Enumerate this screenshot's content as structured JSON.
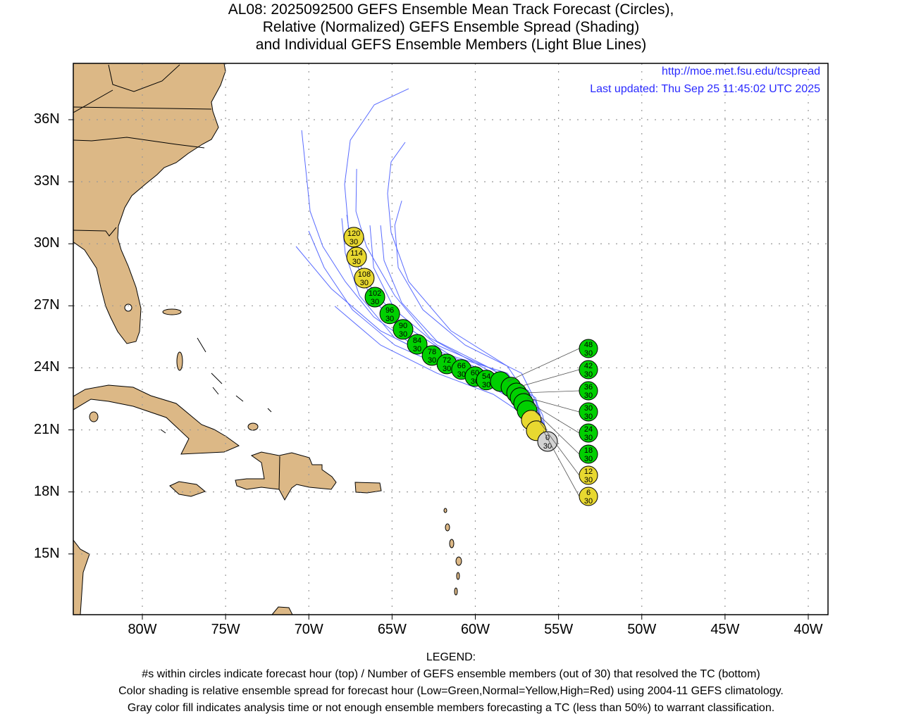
{
  "title": {
    "line1": "AL08: 2025092500 GEFS Ensemble Mean Track Forecast (Circles),",
    "line2": "Relative (Normalized) GEFS Ensemble Spread (Shading)",
    "line3": "and Individual GEFS Ensemble Members (Light Blue Lines)"
  },
  "info": {
    "url": "http://moe.met.fsu.edu/tcspread",
    "updated": "Last updated: Thu Sep 25 11:45:02 UTC 2025"
  },
  "legend": {
    "heading": "LEGEND:",
    "line1": "#s within circles indicate forecast hour (top) / Number of GEFS ensemble members (out of 30) that resolved the TC (bottom)",
    "line2": "Color shading is relative ensemble spread for forecast hour (Low=Green,Normal=Yellow,High=Red) using 2004-11 GEFS climatology.",
    "line3": "Gray color fill indicates analysis time or not enough ensemble members forecasting a TC (less than 50%) to warrant classification."
  },
  "colors": {
    "low": "#00d000",
    "normal": "#e8d830",
    "analysis": "#d3d3d3",
    "land": "#dcb886",
    "member": "#5a6cff"
  },
  "chart_data": {
    "type": "map-track",
    "x_ticks": [
      "80W",
      "75W",
      "70W",
      "65W",
      "60W",
      "55W",
      "50W",
      "45W",
      "40W"
    ],
    "x_tick_values": [
      -80,
      -75,
      -70,
      -65,
      -60,
      -55,
      -50,
      -45,
      -40
    ],
    "y_ticks": [
      "36N",
      "33N",
      "30N",
      "27N",
      "24N",
      "21N",
      "18N",
      "15N"
    ],
    "y_tick_values": [
      36,
      33,
      30,
      27,
      24,
      21,
      18,
      15
    ],
    "lon_range": [
      -84.2,
      -38.8
    ],
    "lat_range": [
      12.1,
      38.7
    ],
    "mean_track": [
      {
        "hour": 0,
        "members": 30,
        "lon": -55.66,
        "lat": 20.44,
        "spread": "analysis"
      },
      {
        "hour": 6,
        "members": 30,
        "lon": -56.34,
        "lat": 20.96,
        "spread": "normal"
      },
      {
        "hour": 12,
        "members": 30,
        "lon": -56.64,
        "lat": 21.47,
        "spread": "normal"
      },
      {
        "hour": 18,
        "members": 30,
        "lon": -56.89,
        "lat": 21.94,
        "spread": "low"
      },
      {
        "hour": 24,
        "members": 30,
        "lon": -57.1,
        "lat": 22.28,
        "spread": "low"
      },
      {
        "hour": 30,
        "members": 30,
        "lon": -57.31,
        "lat": 22.56,
        "spread": "low"
      },
      {
        "hour": 36,
        "members": 30,
        "lon": -57.52,
        "lat": 22.79,
        "spread": "low"
      },
      {
        "hour": 42,
        "members": 30,
        "lon": -57.86,
        "lat": 23.07,
        "spread": "low"
      },
      {
        "hour": 48,
        "members": 30,
        "lon": -58.5,
        "lat": 23.34,
        "spread": "low"
      },
      {
        "hour": 54,
        "members": 30,
        "lon": -59.34,
        "lat": 23.41,
        "spread": "low"
      },
      {
        "hour": 60,
        "members": 30,
        "lon": -60.02,
        "lat": 23.58,
        "spread": "low"
      },
      {
        "hour": 66,
        "members": 30,
        "lon": -60.83,
        "lat": 23.92,
        "spread": "low"
      },
      {
        "hour": 72,
        "members": 30,
        "lon": -61.71,
        "lat": 24.19,
        "spread": "low"
      },
      {
        "hour": 78,
        "members": 30,
        "lon": -62.6,
        "lat": 24.6,
        "spread": "low"
      },
      {
        "hour": 84,
        "members": 30,
        "lon": -63.49,
        "lat": 25.14,
        "spread": "low"
      },
      {
        "hour": 90,
        "members": 30,
        "lon": -64.34,
        "lat": 25.86,
        "spread": "low"
      },
      {
        "hour": 96,
        "members": 30,
        "lon": -65.14,
        "lat": 26.61,
        "spread": "low"
      },
      {
        "hour": 102,
        "members": 30,
        "lon": -66.03,
        "lat": 27.42,
        "spread": "low"
      },
      {
        "hour": 108,
        "members": 30,
        "lon": -66.67,
        "lat": 28.34,
        "spread": "normal"
      },
      {
        "hour": 114,
        "members": 30,
        "lon": -67.13,
        "lat": 29.36,
        "spread": "normal"
      },
      {
        "hour": 120,
        "members": 30,
        "lon": -67.3,
        "lat": 30.32,
        "spread": "normal"
      }
    ],
    "members": [
      [
        [
          -55.95,
          21.36
        ],
        [
          -58.07,
          23.74
        ],
        [
          -61.46,
          24.59
        ],
        [
          -64.42,
          26.13
        ],
        [
          -66.54,
          28.17
        ],
        [
          -67.6,
          30.55
        ],
        [
          -67.85,
          32.87
        ],
        [
          -67.51,
          35.01
        ],
        [
          -66.07,
          36.72
        ],
        [
          -64.0,
          37.5
        ]
      ],
      [
        [
          -56.38,
          22.04
        ],
        [
          -58.07,
          24.08
        ],
        [
          -61.46,
          25.79
        ],
        [
          -64.0,
          28.17
        ],
        [
          -65.06,
          30.55
        ],
        [
          -65.27,
          32.43
        ],
        [
          -65.06,
          33.96
        ],
        [
          -64.21,
          34.91
        ]
      ],
      [
        [
          -56.8,
          22.04
        ],
        [
          -59.76,
          23.4
        ],
        [
          -63.15,
          24.76
        ],
        [
          -66.11,
          26.47
        ],
        [
          -67.81,
          28.17
        ],
        [
          -69.16,
          29.87
        ],
        [
          -69.92,
          31.57
        ],
        [
          -70.14,
          33.28
        ],
        [
          -70.43,
          35.49
        ]
      ],
      [
        [
          -56.38,
          22.38
        ],
        [
          -58.92,
          23.74
        ],
        [
          -62.73,
          25.45
        ],
        [
          -64.84,
          27.49
        ],
        [
          -66.54,
          29.87
        ],
        [
          -67.17,
          31.57
        ],
        [
          -67.13,
          33.62
        ]
      ],
      [
        [
          -55.95,
          21.7
        ],
        [
          -57.22,
          23.74
        ],
        [
          -60.61,
          25.1
        ],
        [
          -63.15,
          26.81
        ],
        [
          -64.63,
          28.85
        ],
        [
          -64.84,
          30.89
        ],
        [
          -64.42,
          32.08
        ]
      ],
      [
        [
          -56.38,
          21.7
        ],
        [
          -58.92,
          23.4
        ],
        [
          -62.3,
          24.42
        ],
        [
          -65.69,
          25.79
        ],
        [
          -68.65,
          27.83
        ],
        [
          -70.77,
          29.87
        ]
      ],
      [
        [
          -56.0,
          21.5
        ],
        [
          -58.07,
          22.72
        ],
        [
          -61.46,
          23.91
        ],
        [
          -64.84,
          25.1
        ],
        [
          -67.38,
          26.81
        ],
        [
          -69.08,
          28.85
        ],
        [
          -70.01,
          30.62
        ]
      ],
      [
        [
          -56.38,
          21.36
        ],
        [
          -58.92,
          22.72
        ],
        [
          -62.3,
          23.74
        ],
        [
          -65.69,
          25.1
        ],
        [
          -68.44,
          26.98
        ]
      ],
      [
        [
          -56.2,
          21.3
        ],
        [
          -58.07,
          23.06
        ],
        [
          -61.46,
          24.08
        ],
        [
          -64.84,
          25.45
        ],
        [
          -66.96,
          27.49
        ],
        [
          -67.81,
          29.53
        ],
        [
          -68.02,
          31.23
        ]
      ],
      [
        [
          -55.74,
          21.02
        ],
        [
          -56.8,
          22.89
        ],
        [
          -59.34,
          24.08
        ],
        [
          -62.3,
          25.28
        ],
        [
          -64.42,
          27.15
        ],
        [
          -65.48,
          29.19
        ],
        [
          -65.69,
          30.89
        ]
      ],
      [
        [
          -56.38,
          22.55
        ],
        [
          -58.92,
          23.91
        ],
        [
          -62.3,
          25.1
        ],
        [
          -64.84,
          26.81
        ],
        [
          -66.11,
          28.85
        ],
        [
          -66.33,
          30.89
        ]
      ],
      [
        [
          -55.95,
          21.19
        ],
        [
          -57.65,
          23.23
        ],
        [
          -60.61,
          24.25
        ],
        [
          -64.0,
          25.45
        ],
        [
          -66.33,
          27.49
        ],
        [
          -67.38,
          29.53
        ],
        [
          -67.72,
          31.4
        ]
      ]
    ]
  }
}
